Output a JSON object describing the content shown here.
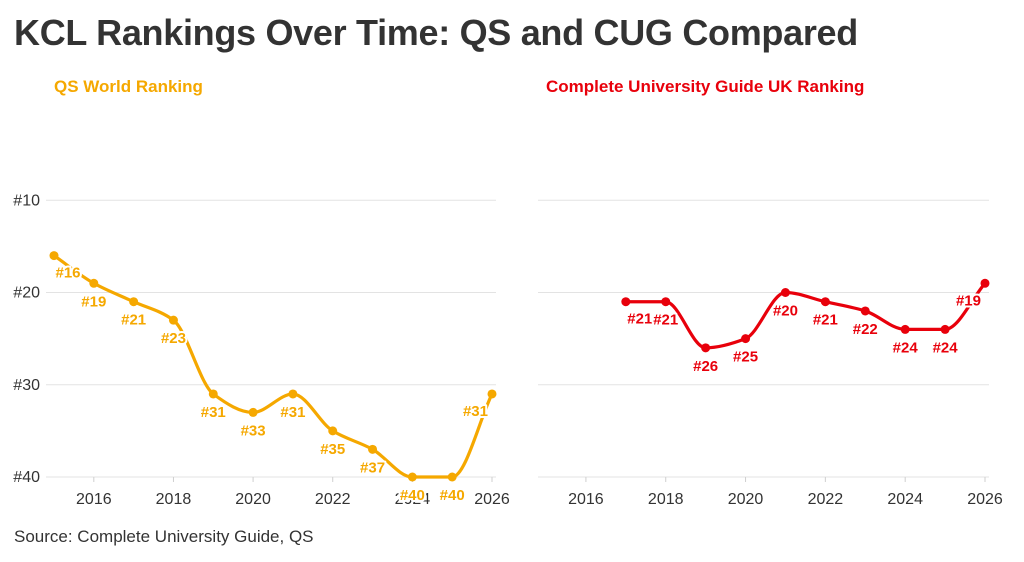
{
  "title": "KCL Rankings Over Time: QS and CUG Compared",
  "source": "Source: Complete University Guide, QS",
  "chart_data": [
    {
      "type": "line",
      "title": "QS World Ranking",
      "color": "#F5A800",
      "x": [
        2015,
        2016,
        2017,
        2018,
        2019,
        2020,
        2021,
        2022,
        2023,
        2024,
        2025,
        2026
      ],
      "values": [
        16,
        19,
        21,
        23,
        31,
        33,
        31,
        35,
        37,
        40,
        40,
        31
      ],
      "labels": [
        "#16",
        "#19",
        "#21",
        "#23",
        "#31",
        "#33",
        "#31",
        "#35",
        "#37",
        "#40",
        "#40",
        "#31"
      ],
      "xticks": [
        2016,
        2018,
        2020,
        2022,
        2024,
        2026
      ],
      "yticks": [
        10,
        20,
        30,
        40
      ],
      "ytick_labels": [
        "#10",
        "#20",
        "#30",
        "#40"
      ],
      "xlim": [
        2015,
        2026
      ],
      "ylim": [
        0,
        40
      ],
      "y_reversed": true,
      "grid": true
    },
    {
      "type": "line",
      "title": "Complete University Guide UK Ranking",
      "color": "#E8000B",
      "x": [
        2017,
        2018,
        2019,
        2020,
        2021,
        2022,
        2023,
        2024,
        2025,
        2026
      ],
      "values": [
        21,
        21,
        26,
        25,
        20,
        21,
        22,
        24,
        24,
        19
      ],
      "labels": [
        "#21",
        "#21",
        "#26",
        "#25",
        "#20",
        "#21",
        "#22",
        "#24",
        "#24",
        "#19"
      ],
      "xticks": [
        2016,
        2018,
        2020,
        2022,
        2024,
        2026
      ],
      "yticks": [
        10,
        20,
        30,
        40
      ],
      "xlim": [
        2015,
        2026
      ],
      "ylim": [
        0,
        40
      ],
      "y_reversed": true,
      "grid": true
    }
  ]
}
